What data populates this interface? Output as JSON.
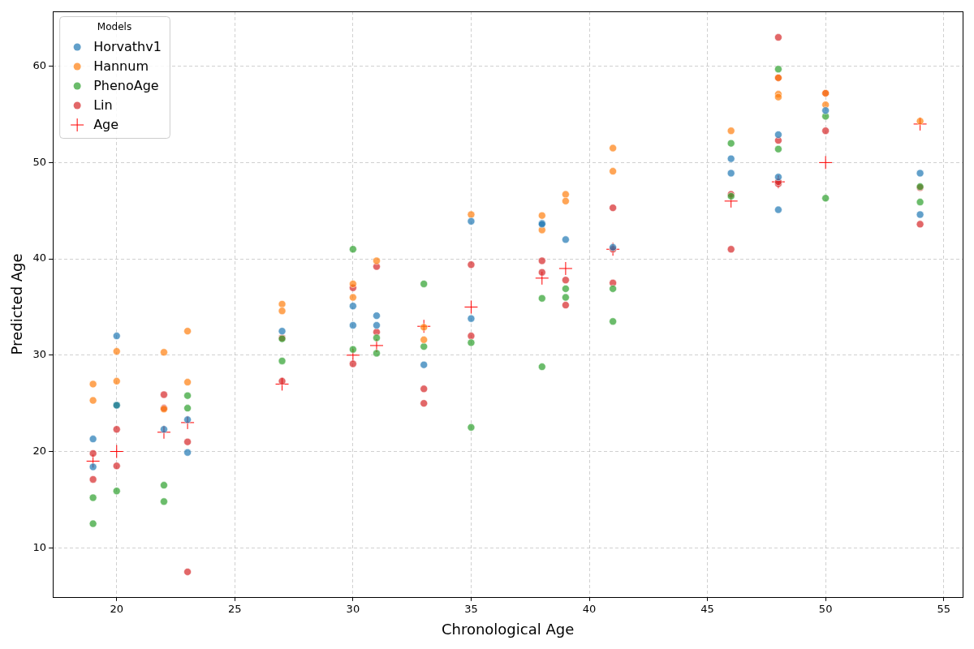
{
  "chart_data": {
    "type": "scatter",
    "x_label": "Chronological Age",
    "y_label": "Predicted Age",
    "legend_title": "Models",
    "legend": "upper left",
    "grid": true,
    "xlim": [
      17.3,
      55.8
    ],
    "xticks": [
      20,
      25,
      30,
      35,
      40,
      45,
      50,
      55
    ],
    "ylim": [
      4.9,
      65.7
    ],
    "yticks": [
      10,
      20,
      30,
      40,
      50,
      60
    ],
    "series": [
      {
        "name": "Horvathv1",
        "color": "#1f77b4",
        "marker": "circle",
        "x": [
          19,
          19,
          20,
          20,
          22,
          23,
          23,
          27,
          30,
          30,
          31,
          31,
          33,
          35,
          35,
          38,
          38,
          39,
          41,
          46,
          46,
          48,
          48,
          48,
          50,
          54,
          54
        ],
        "values": [
          21.3,
          18.4,
          32.0,
          24.8,
          22.3,
          23.3,
          19.9,
          32.5,
          35.1,
          33.1,
          34.1,
          33.1,
          29.0,
          43.9,
          33.8,
          43.7,
          43.6,
          42.0,
          41.2,
          50.4,
          48.9,
          52.9,
          48.5,
          45.1,
          55.4,
          48.9,
          44.6
        ]
      },
      {
        "name": "Hannum",
        "color": "#ff7f0e",
        "marker": "circle",
        "x": [
          19,
          19,
          20,
          20,
          22,
          22,
          23,
          23,
          27,
          27,
          30,
          30,
          31,
          33,
          33,
          35,
          38,
          38,
          39,
          39,
          41,
          41,
          46,
          48,
          48,
          48,
          50,
          50,
          54
        ],
        "values": [
          27.0,
          25.3,
          30.4,
          27.3,
          30.3,
          24.4,
          32.5,
          27.2,
          35.3,
          34.6,
          37.4,
          36.0,
          39.8,
          32.9,
          31.6,
          44.6,
          44.5,
          43.0,
          46.7,
          46.0,
          51.5,
          49.1,
          53.3,
          58.8,
          57.1,
          56.8,
          57.2,
          56.0,
          54.3
        ]
      },
      {
        "name": "PhenoAge",
        "color": "#2ca02c",
        "marker": "circle",
        "x": [
          19,
          19,
          20,
          20,
          22,
          22,
          23,
          23,
          27,
          27,
          30,
          30,
          31,
          31,
          33,
          33,
          35,
          35,
          38,
          38,
          39,
          39,
          41,
          41,
          46,
          46,
          48,
          48,
          50,
          50,
          54,
          54
        ],
        "values": [
          15.2,
          12.5,
          24.8,
          15.9,
          16.5,
          14.8,
          25.8,
          24.5,
          31.7,
          29.4,
          41.0,
          30.6,
          31.8,
          30.2,
          37.4,
          30.9,
          31.3,
          22.5,
          35.9,
          28.8,
          36.9,
          36.0,
          36.9,
          33.5,
          52.0,
          46.5,
          59.7,
          51.4,
          54.8,
          46.3,
          47.5,
          45.9
        ]
      },
      {
        "name": "Lin",
        "color": "#d62728",
        "marker": "circle",
        "x": [
          19,
          19,
          20,
          20,
          22,
          22,
          23,
          23,
          27,
          27,
          30,
          30,
          31,
          31,
          33,
          33,
          35,
          35,
          38,
          38,
          39,
          39,
          41,
          41,
          41,
          46,
          46,
          48,
          48,
          48,
          48,
          48,
          50,
          50,
          54,
          54
        ],
        "values": [
          19.8,
          17.1,
          22.3,
          18.5,
          25.9,
          24.5,
          21.0,
          7.5,
          31.8,
          27.3,
          37.0,
          29.1,
          39.2,
          32.4,
          26.5,
          25.0,
          39.4,
          32.0,
          39.8,
          38.6,
          37.8,
          35.2,
          45.3,
          37.5,
          41.0,
          46.7,
          41.0,
          63.0,
          58.8,
          52.3,
          47.8,
          48.0,
          57.2,
          53.3,
          47.4,
          43.6
        ]
      },
      {
        "name": "Age",
        "color": "#ff0000",
        "marker": "plus",
        "x": [
          19,
          20,
          22,
          23,
          27,
          30,
          31,
          33,
          35,
          38,
          39,
          41,
          46,
          48,
          50,
          54
        ],
        "values": [
          19,
          20,
          22,
          23,
          27,
          30,
          31,
          33,
          35,
          38,
          39,
          41,
          46,
          48,
          50,
          54
        ]
      }
    ]
  }
}
